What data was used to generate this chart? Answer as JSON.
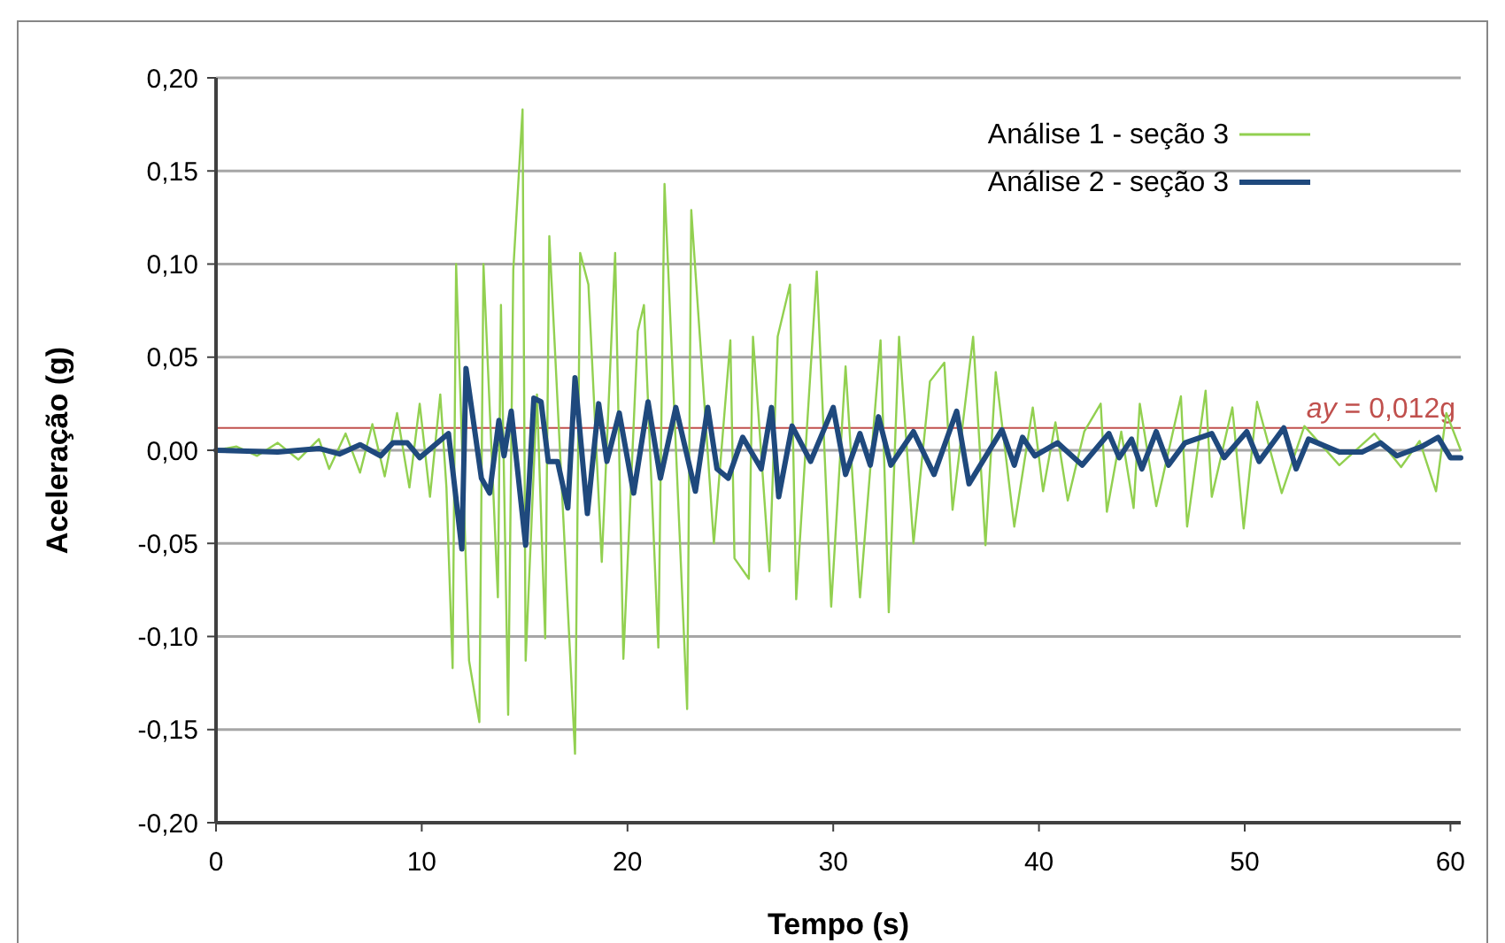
{
  "chart_data": {
    "type": "line",
    "xlabel": "Tempo (s)",
    "ylabel": "Aceleração (g)",
    "xlim": [
      0,
      60.5
    ],
    "xticks": [
      0,
      10,
      20,
      30,
      40,
      50,
      60
    ],
    "ylim": [
      -0.2,
      0.2
    ],
    "yticks": [
      {
        "value": -0.2,
        "label": "-0,20"
      },
      {
        "value": -0.15,
        "label": "-0,15"
      },
      {
        "value": -0.1,
        "label": "-0,10"
      },
      {
        "value": -0.05,
        "label": "-0,05"
      },
      {
        "value": 0,
        "label": "0,00"
      },
      {
        "value": 0.05,
        "label": "0,05"
      },
      {
        "value": 0.1,
        "label": "0,10"
      },
      {
        "value": 0.15,
        "label": "0,15"
      },
      {
        "value": 0.2,
        "label": "0,20"
      }
    ],
    "grid": "y",
    "legend": "top right",
    "ref_lines": [
      {
        "axis": "y",
        "value": 0.012,
        "label": "ay = 0,012g",
        "color": "#c0504d"
      }
    ],
    "series": [
      {
        "name": "Análise 1 - seção 3",
        "color": "#92d050",
        "x": [
          0,
          1,
          2,
          3,
          4,
          5,
          5.5,
          6.3,
          7,
          7.6,
          8.2,
          8.8,
          9.4,
          9.9,
          10.4,
          10.9,
          11.2,
          11.5,
          11.67,
          12.3,
          12.8,
          13.0,
          13.7,
          13.85,
          14.2,
          14.45,
          14.9,
          15.05,
          15.6,
          16.0,
          16.2,
          17.45,
          17.7,
          18.1,
          18.75,
          19.4,
          19.8,
          20.5,
          20.8,
          21.5,
          21.8,
          22.9,
          23.1,
          24.2,
          25.0,
          25.2,
          25.9,
          26.1,
          26.9,
          27.3,
          27.9,
          28.2,
          29.2,
          29.9,
          30.6,
          31.3,
          32.3,
          32.7,
          33.2,
          33.9,
          34.7,
          35.4,
          35.8,
          36.8,
          37.4,
          37.9,
          38.8,
          39.7,
          40.2,
          40.8,
          41.4,
          42.2,
          43.0,
          43.3,
          44.0,
          44.6,
          44.9,
          45.7,
          46.9,
          47.2,
          48.1,
          48.4,
          49.4,
          49.95,
          50.6,
          51.8,
          52.9,
          54.6,
          56.3,
          57.6,
          58.5,
          59.3,
          59.8,
          60.5
        ],
        "values": [
          0,
          0.002,
          -0.003,
          0.004,
          -0.005,
          0.006,
          -0.01,
          0.009,
          -0.012,
          0.014,
          -0.014,
          0.02,
          -0.02,
          0.025,
          -0.025,
          0.03,
          -0.02,
          -0.117,
          0.1,
          -0.113,
          -0.146,
          0.1,
          -0.079,
          0.078,
          -0.142,
          0.097,
          0.183,
          -0.113,
          0.03,
          -0.101,
          0.115,
          -0.163,
          0.106,
          0.089,
          -0.06,
          0.106,
          -0.112,
          0.064,
          0.078,
          -0.106,
          0.143,
          -0.139,
          0.129,
          -0.05,
          0.059,
          -0.058,
          -0.069,
          0.061,
          -0.065,
          0.061,
          0.089,
          -0.08,
          0.096,
          -0.084,
          0.045,
          -0.079,
          0.059,
          -0.087,
          0.061,
          -0.05,
          0.037,
          0.047,
          -0.032,
          0.061,
          -0.051,
          0.042,
          -0.041,
          0.023,
          -0.022,
          0.015,
          -0.027,
          0.01,
          0.025,
          -0.033,
          0.01,
          -0.031,
          0.025,
          -0.03,
          0.029,
          -0.041,
          0.032,
          -0.025,
          0.023,
          -0.042,
          0.026,
          -0.023,
          0.013,
          -0.008,
          0.009,
          -0.009,
          0.005,
          -0.022,
          0.02,
          0
        ]
      },
      {
        "name": "Análise 2 - seção 3",
        "color": "#1f497d",
        "x": [
          0,
          3,
          5,
          6,
          7,
          8,
          8.6,
          9.3,
          9.9,
          11.3,
          11.95,
          12.15,
          12.9,
          13.3,
          13.75,
          14.0,
          14.35,
          15.05,
          15.45,
          15.8,
          16.15,
          16.6,
          17.1,
          17.45,
          18.05,
          18.6,
          19.0,
          19.6,
          20.3,
          21.0,
          21.6,
          22.35,
          23.3,
          23.9,
          24.35,
          24.9,
          25.6,
          26.5,
          27.0,
          27.35,
          28.0,
          28.9,
          30.0,
          30.6,
          31.3,
          31.8,
          32.2,
          32.8,
          33.9,
          34.9,
          36.0,
          36.6,
          38.2,
          38.8,
          39.2,
          39.8,
          40.9,
          42.1,
          43.4,
          43.9,
          44.5,
          45.0,
          45.7,
          46.3,
          47.1,
          48.4,
          49.0,
          50.1,
          50.7,
          51.9,
          52.5,
          53.1,
          54.6,
          55.7,
          56.6,
          57.4,
          58.6,
          59.4,
          60.0,
          60.5
        ],
        "values": [
          0,
          -0.001,
          0.001,
          -0.002,
          0.003,
          -0.003,
          0.004,
          0.004,
          -0.004,
          0.009,
          -0.053,
          0.044,
          -0.015,
          -0.023,
          0.016,
          -0.003,
          0.021,
          -0.051,
          0.028,
          0.026,
          -0.006,
          -0.006,
          -0.031,
          0.039,
          -0.034,
          0.025,
          -0.006,
          0.02,
          -0.023,
          0.026,
          -0.015,
          0.023,
          -0.022,
          0.023,
          -0.01,
          -0.015,
          0.007,
          -0.01,
          0.023,
          -0.025,
          0.013,
          -0.006,
          0.023,
          -0.013,
          0.009,
          -0.008,
          0.018,
          -0.008,
          0.01,
          -0.013,
          0.021,
          -0.018,
          0.011,
          -0.008,
          0.007,
          -0.003,
          0.004,
          -0.008,
          0.009,
          -0.004,
          0.006,
          -0.01,
          0.01,
          -0.008,
          0.004,
          0.009,
          -0.004,
          0.01,
          -0.006,
          0.012,
          -0.01,
          0.006,
          -0.001,
          -0.001,
          0.004,
          -0.003,
          0.002,
          0.007,
          -0.004,
          -0.004
        ]
      }
    ]
  }
}
